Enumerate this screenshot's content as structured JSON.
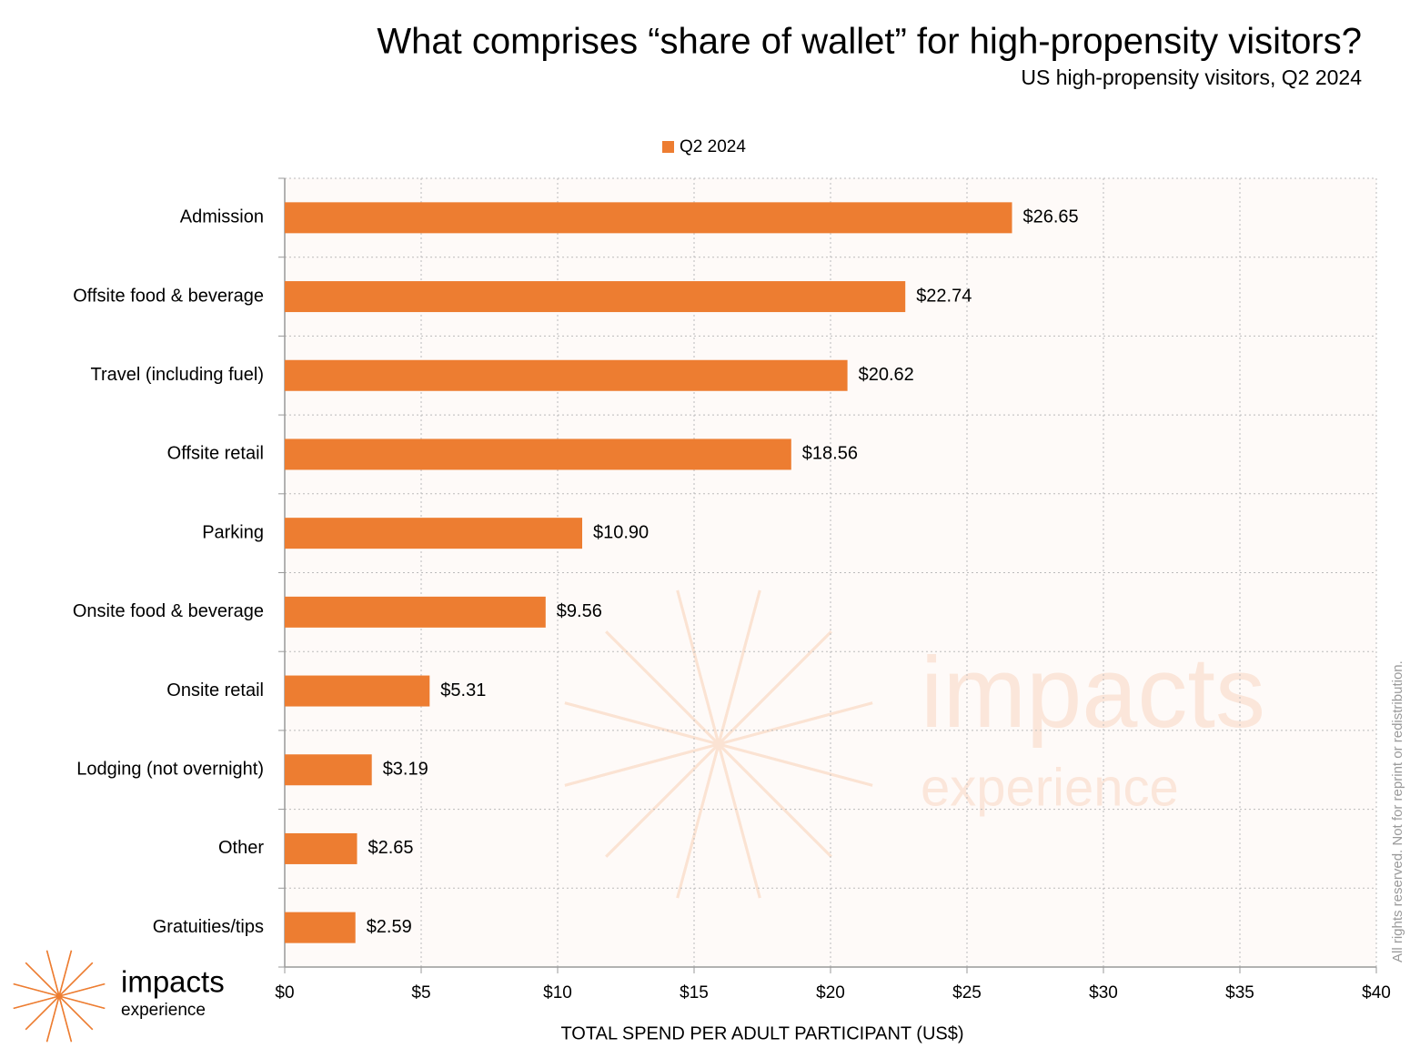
{
  "chart_data": {
    "type": "bar",
    "orientation": "horizontal",
    "title": "What comprises “share of wallet” for high-propensity visitors?",
    "subtitle": "US high-propensity visitors, Q2 2024",
    "x_label": "TOTAL SPEND PER ADULT PARTICIPANT (US$)",
    "categories": [
      "Admission",
      "Offsite food & beverage",
      "Travel (including fuel)",
      "Offsite retail",
      "Parking",
      "Onsite food & beverage",
      "Onsite retail",
      "Lodging (not overnight)",
      "Other",
      "Gratuities/tips"
    ],
    "series": [
      {
        "name": "Q2 2024",
        "color": "#ed7d31",
        "values": [
          26.65,
          22.74,
          20.62,
          18.56,
          10.9,
          9.56,
          5.31,
          3.19,
          2.65,
          2.59
        ],
        "value_labels": [
          "$26.65",
          "$22.74",
          "$20.62",
          "$18.56",
          "$10.90",
          "$9.56",
          "$5.31",
          "$3.19",
          "$2.65",
          "$2.59"
        ]
      }
    ],
    "xlim": [
      0,
      40
    ],
    "xticks": [
      {
        "value": 0,
        "label": "$0"
      },
      {
        "value": 5,
        "label": "$5"
      },
      {
        "value": 10,
        "label": "$10"
      },
      {
        "value": 15,
        "label": "$15"
      },
      {
        "value": 20,
        "label": "$20"
      },
      {
        "value": 25,
        "label": "$25"
      },
      {
        "value": 30,
        "label": "$30"
      },
      {
        "value": 35,
        "label": "$35"
      },
      {
        "value": 40,
        "label": "$40"
      }
    ],
    "grid": true,
    "legend": "top"
  },
  "branding": {
    "name": "impacts",
    "tagline": "experience",
    "notice": "All rights reserved. Not for reprint or redistribution."
  }
}
